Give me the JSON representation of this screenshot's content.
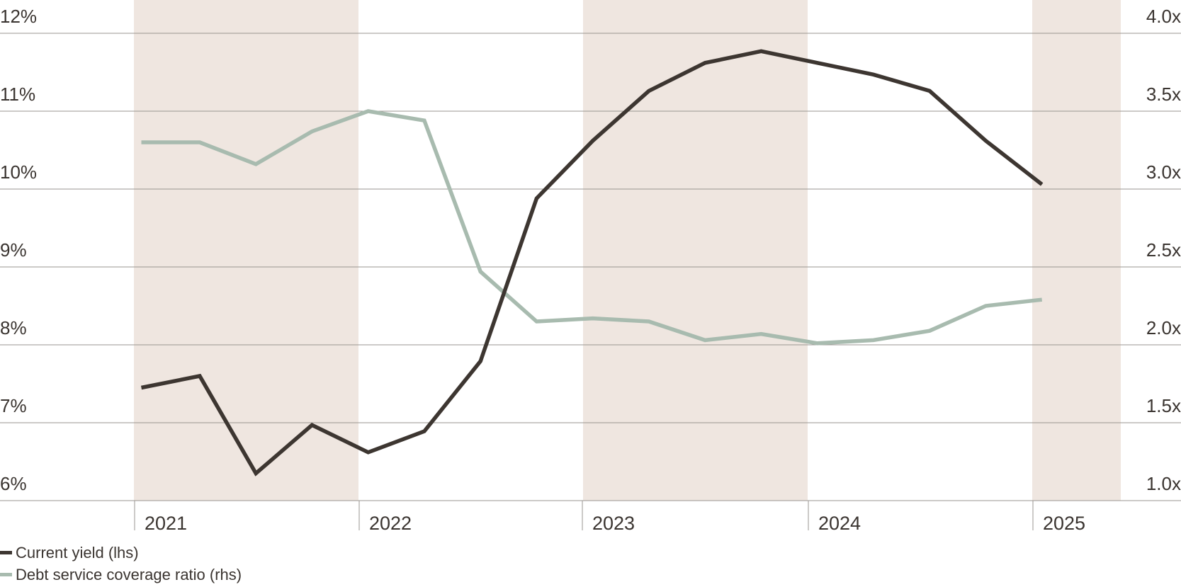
{
  "chart_data": {
    "type": "line",
    "xlim": [
      2021,
      2025.4
    ],
    "shaded_years": [
      2021,
      2023,
      2025
    ],
    "years": [
      "2021",
      "2022",
      "2023",
      "2024",
      "2025"
    ],
    "left_axis": {
      "min": 6,
      "max": 12,
      "ticks": [
        {
          "value": 12,
          "label": "12%"
        },
        {
          "value": 11,
          "label": "11%"
        },
        {
          "value": 10,
          "label": "10%"
        },
        {
          "value": 9,
          "label": "9%"
        },
        {
          "value": 8,
          "label": "8%"
        },
        {
          "value": 7,
          "label": "7%"
        },
        {
          "value": 6,
          "label": "6%"
        }
      ]
    },
    "right_axis": {
      "min": 1.0,
      "max": 4.0,
      "ticks": [
        {
          "value": 4.0,
          "label": "4.0x"
        },
        {
          "value": 3.5,
          "label": "3.5x"
        },
        {
          "value": 3.0,
          "label": "3.0x"
        },
        {
          "value": 2.5,
          "label": "2.5x"
        },
        {
          "value": 2.0,
          "label": "2.0x"
        },
        {
          "value": 1.5,
          "label": "1.5x"
        },
        {
          "value": 1.0,
          "label": "1.0x"
        }
      ]
    },
    "series": [
      {
        "name": "Current yield (lhs)",
        "axis": "left",
        "color": "#3d3631",
        "x": [
          2021.03,
          2021.29,
          2021.54,
          2021.79,
          2022.04,
          2022.29,
          2022.54,
          2022.79,
          2023.04,
          2023.29,
          2023.54,
          2023.79,
          2024.04,
          2024.29,
          2024.54,
          2024.79,
          2025.04
        ],
        "values": [
          7.45,
          7.6,
          6.35,
          6.97,
          6.62,
          6.89,
          7.79,
          9.88,
          10.62,
          11.26,
          11.62,
          11.77,
          11.62,
          11.47,
          11.26,
          10.62,
          10.06
        ]
      },
      {
        "name": "Debt service coverage ratio (rhs)",
        "axis": "right",
        "color": "#a8bbaf",
        "x": [
          2021.03,
          2021.29,
          2021.54,
          2021.79,
          2022.04,
          2022.29,
          2022.54,
          2022.79,
          2023.04,
          2023.29,
          2023.54,
          2023.79,
          2024.04,
          2024.29,
          2024.54,
          2024.79,
          2025.04
        ],
        "values": [
          3.3,
          3.3,
          3.16,
          3.37,
          3.5,
          3.44,
          2.47,
          2.15,
          2.17,
          2.15,
          2.03,
          2.07,
          2.01,
          2.03,
          2.09,
          2.25,
          2.29
        ]
      }
    ],
    "grid": true,
    "legend_position": "bottom-left"
  },
  "colors": {
    "shade": "#efe6e0",
    "grid": "#9a9590",
    "text": "#3a3430"
  }
}
